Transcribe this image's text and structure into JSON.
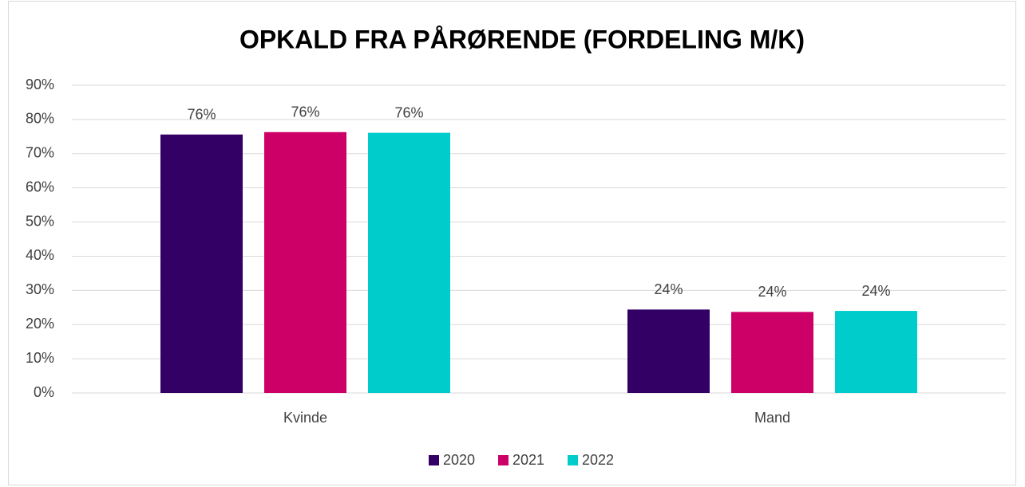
{
  "chart_data": {
    "type": "bar",
    "title": "OPKALD FRA PÅRØRENDE (FORDELING M/K)",
    "categories": [
      "Kvinde",
      "Mand"
    ],
    "series": [
      {
        "name": "2020",
        "color": "#330066",
        "values": [
          75.6,
          24.4
        ],
        "value_labels": [
          "76%",
          "24%"
        ]
      },
      {
        "name": "2021",
        "color": "#cc0066",
        "values": [
          76.3,
          23.7
        ],
        "value_labels": [
          "76%",
          "24%"
        ]
      },
      {
        "name": "2022",
        "color": "#00cccc",
        "values": [
          76.1,
          24.0
        ],
        "value_labels": [
          "76%",
          "24%"
        ]
      }
    ],
    "ylim": [
      0,
      90
    ],
    "yticks": [
      {
        "value": 0,
        "label": "0%"
      },
      {
        "value": 10,
        "label": "10%"
      },
      {
        "value": 20,
        "label": "20%"
      },
      {
        "value": 30,
        "label": "30%"
      },
      {
        "value": 40,
        "label": "40%"
      },
      {
        "value": 50,
        "label": "50%"
      },
      {
        "value": 60,
        "label": "60%"
      },
      {
        "value": 70,
        "label": "70%"
      },
      {
        "value": 80,
        "label": "80%"
      },
      {
        "value": 90,
        "label": "90%"
      }
    ],
    "grid": true,
    "legend": "bottom"
  }
}
